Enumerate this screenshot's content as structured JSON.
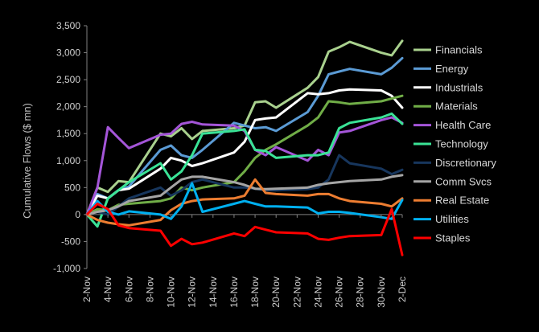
{
  "chart_data": {
    "type": "line",
    "title": "",
    "ylabel": "Cumulative Flows ($ mn)",
    "xlabel": "",
    "ylim": [
      -1000,
      3500
    ],
    "y_ticks": [
      -1000,
      -500,
      0,
      500,
      1000,
      1500,
      2000,
      2500,
      3000,
      3500
    ],
    "y_tick_labels": [
      "-1,000",
      "-500",
      "0",
      "500",
      "1,000",
      "1,500",
      "2,000",
      "2,500",
      "3,000",
      "3,500"
    ],
    "x_tick_labels": [
      "2-Nov",
      "4-Nov",
      "6-Nov",
      "8-Nov",
      "10-Nov",
      "12-Nov",
      "14-Nov",
      "16-Nov",
      "18-Nov",
      "20-Nov",
      "22-Nov",
      "24-Nov",
      "26-Nov",
      "28-Nov",
      "30-Nov",
      "2-Dec"
    ],
    "x": [
      2,
      3,
      4,
      5,
      6,
      9,
      10,
      11,
      12,
      13,
      16,
      17,
      18,
      19,
      20,
      23,
      24,
      25,
      26,
      27,
      30,
      31,
      32
    ],
    "legend_position": "right",
    "grid": false,
    "series": [
      {
        "name": "Financials",
        "color": "#a9d18e",
        "values": [
          0,
          500,
          420,
          620,
          600,
          1500,
          1450,
          1600,
          1400,
          1550,
          1600,
          1650,
          2080,
          2100,
          1980,
          2350,
          2550,
          3020,
          3100,
          3200,
          3000,
          2950,
          3220
        ]
      },
      {
        "name": "Energy",
        "color": "#5b9bd5",
        "values": [
          0,
          380,
          300,
          450,
          520,
          1200,
          1280,
          1100,
          1050,
          1200,
          1700,
          1650,
          1600,
          1620,
          1550,
          1900,
          2200,
          2600,
          2650,
          2700,
          2600,
          2720,
          2900
        ]
      },
      {
        "name": "Industrials",
        "color": "#ffffff",
        "values": [
          0,
          350,
          300,
          450,
          480,
          850,
          1050,
          1000,
          900,
          950,
          1150,
          1350,
          1750,
          1780,
          1800,
          2250,
          2230,
          2250,
          2300,
          2320,
          2300,
          2200,
          1980
        ]
      },
      {
        "name": "Materials",
        "color": "#70ad47",
        "values": [
          0,
          100,
          80,
          180,
          200,
          250,
          300,
          500,
          450,
          500,
          600,
          800,
          1050,
          1200,
          1300,
          1650,
          1800,
          2100,
          2080,
          2050,
          2100,
          2150,
          2200
        ]
      },
      {
        "name": "Health Care",
        "color": "#a455d8",
        "values": [
          0,
          500,
          1620,
          1420,
          1230,
          1480,
          1500,
          1680,
          1720,
          1670,
          1650,
          1550,
          1200,
          1100,
          1250,
          1000,
          1200,
          1100,
          1520,
          1550,
          1750,
          1800,
          1700
        ]
      },
      {
        "name": "Technology",
        "color": "#3ae396",
        "values": [
          0,
          -220,
          300,
          450,
          600,
          950,
          650,
          800,
          1100,
          1500,
          1550,
          1580,
          1200,
          1180,
          1050,
          1100,
          1100,
          1150,
          1600,
          1700,
          1800,
          1870,
          1680
        ]
      },
      {
        "name": "Discretionary",
        "color": "#17365d",
        "values": [
          0,
          50,
          0,
          150,
          300,
          500,
          350,
          450,
          600,
          650,
          500,
          500,
          480,
          450,
          450,
          470,
          500,
          650,
          1100,
          950,
          850,
          750,
          830
        ]
      },
      {
        "name": "Comm Svcs",
        "color": "#a5a5a5",
        "values": [
          0,
          50,
          80,
          150,
          250,
          350,
          500,
          650,
          700,
          700,
          600,
          550,
          480,
          470,
          480,
          500,
          550,
          580,
          600,
          620,
          650,
          700,
          730
        ]
      },
      {
        "name": "Real Estate",
        "color": "#ed7d31",
        "values": [
          0,
          -100,
          -150,
          -180,
          -200,
          -100,
          80,
          200,
          250,
          280,
          300,
          350,
          650,
          400,
          380,
          350,
          380,
          380,
          300,
          250,
          200,
          150,
          300
        ]
      },
      {
        "name": "Utilities",
        "color": "#00b0f0",
        "values": [
          0,
          250,
          50,
          0,
          60,
          0,
          -80,
          150,
          580,
          50,
          200,
          250,
          200,
          150,
          150,
          130,
          20,
          50,
          50,
          30,
          -50,
          -80,
          270
        ]
      },
      {
        "name": "Staples",
        "color": "#ff0000",
        "values": [
          0,
          200,
          100,
          -200,
          -250,
          -300,
          -580,
          -450,
          -550,
          -520,
          -350,
          -400,
          -230,
          -280,
          -330,
          -350,
          -450,
          -470,
          -430,
          -400,
          -380,
          100,
          -750
        ]
      }
    ]
  }
}
